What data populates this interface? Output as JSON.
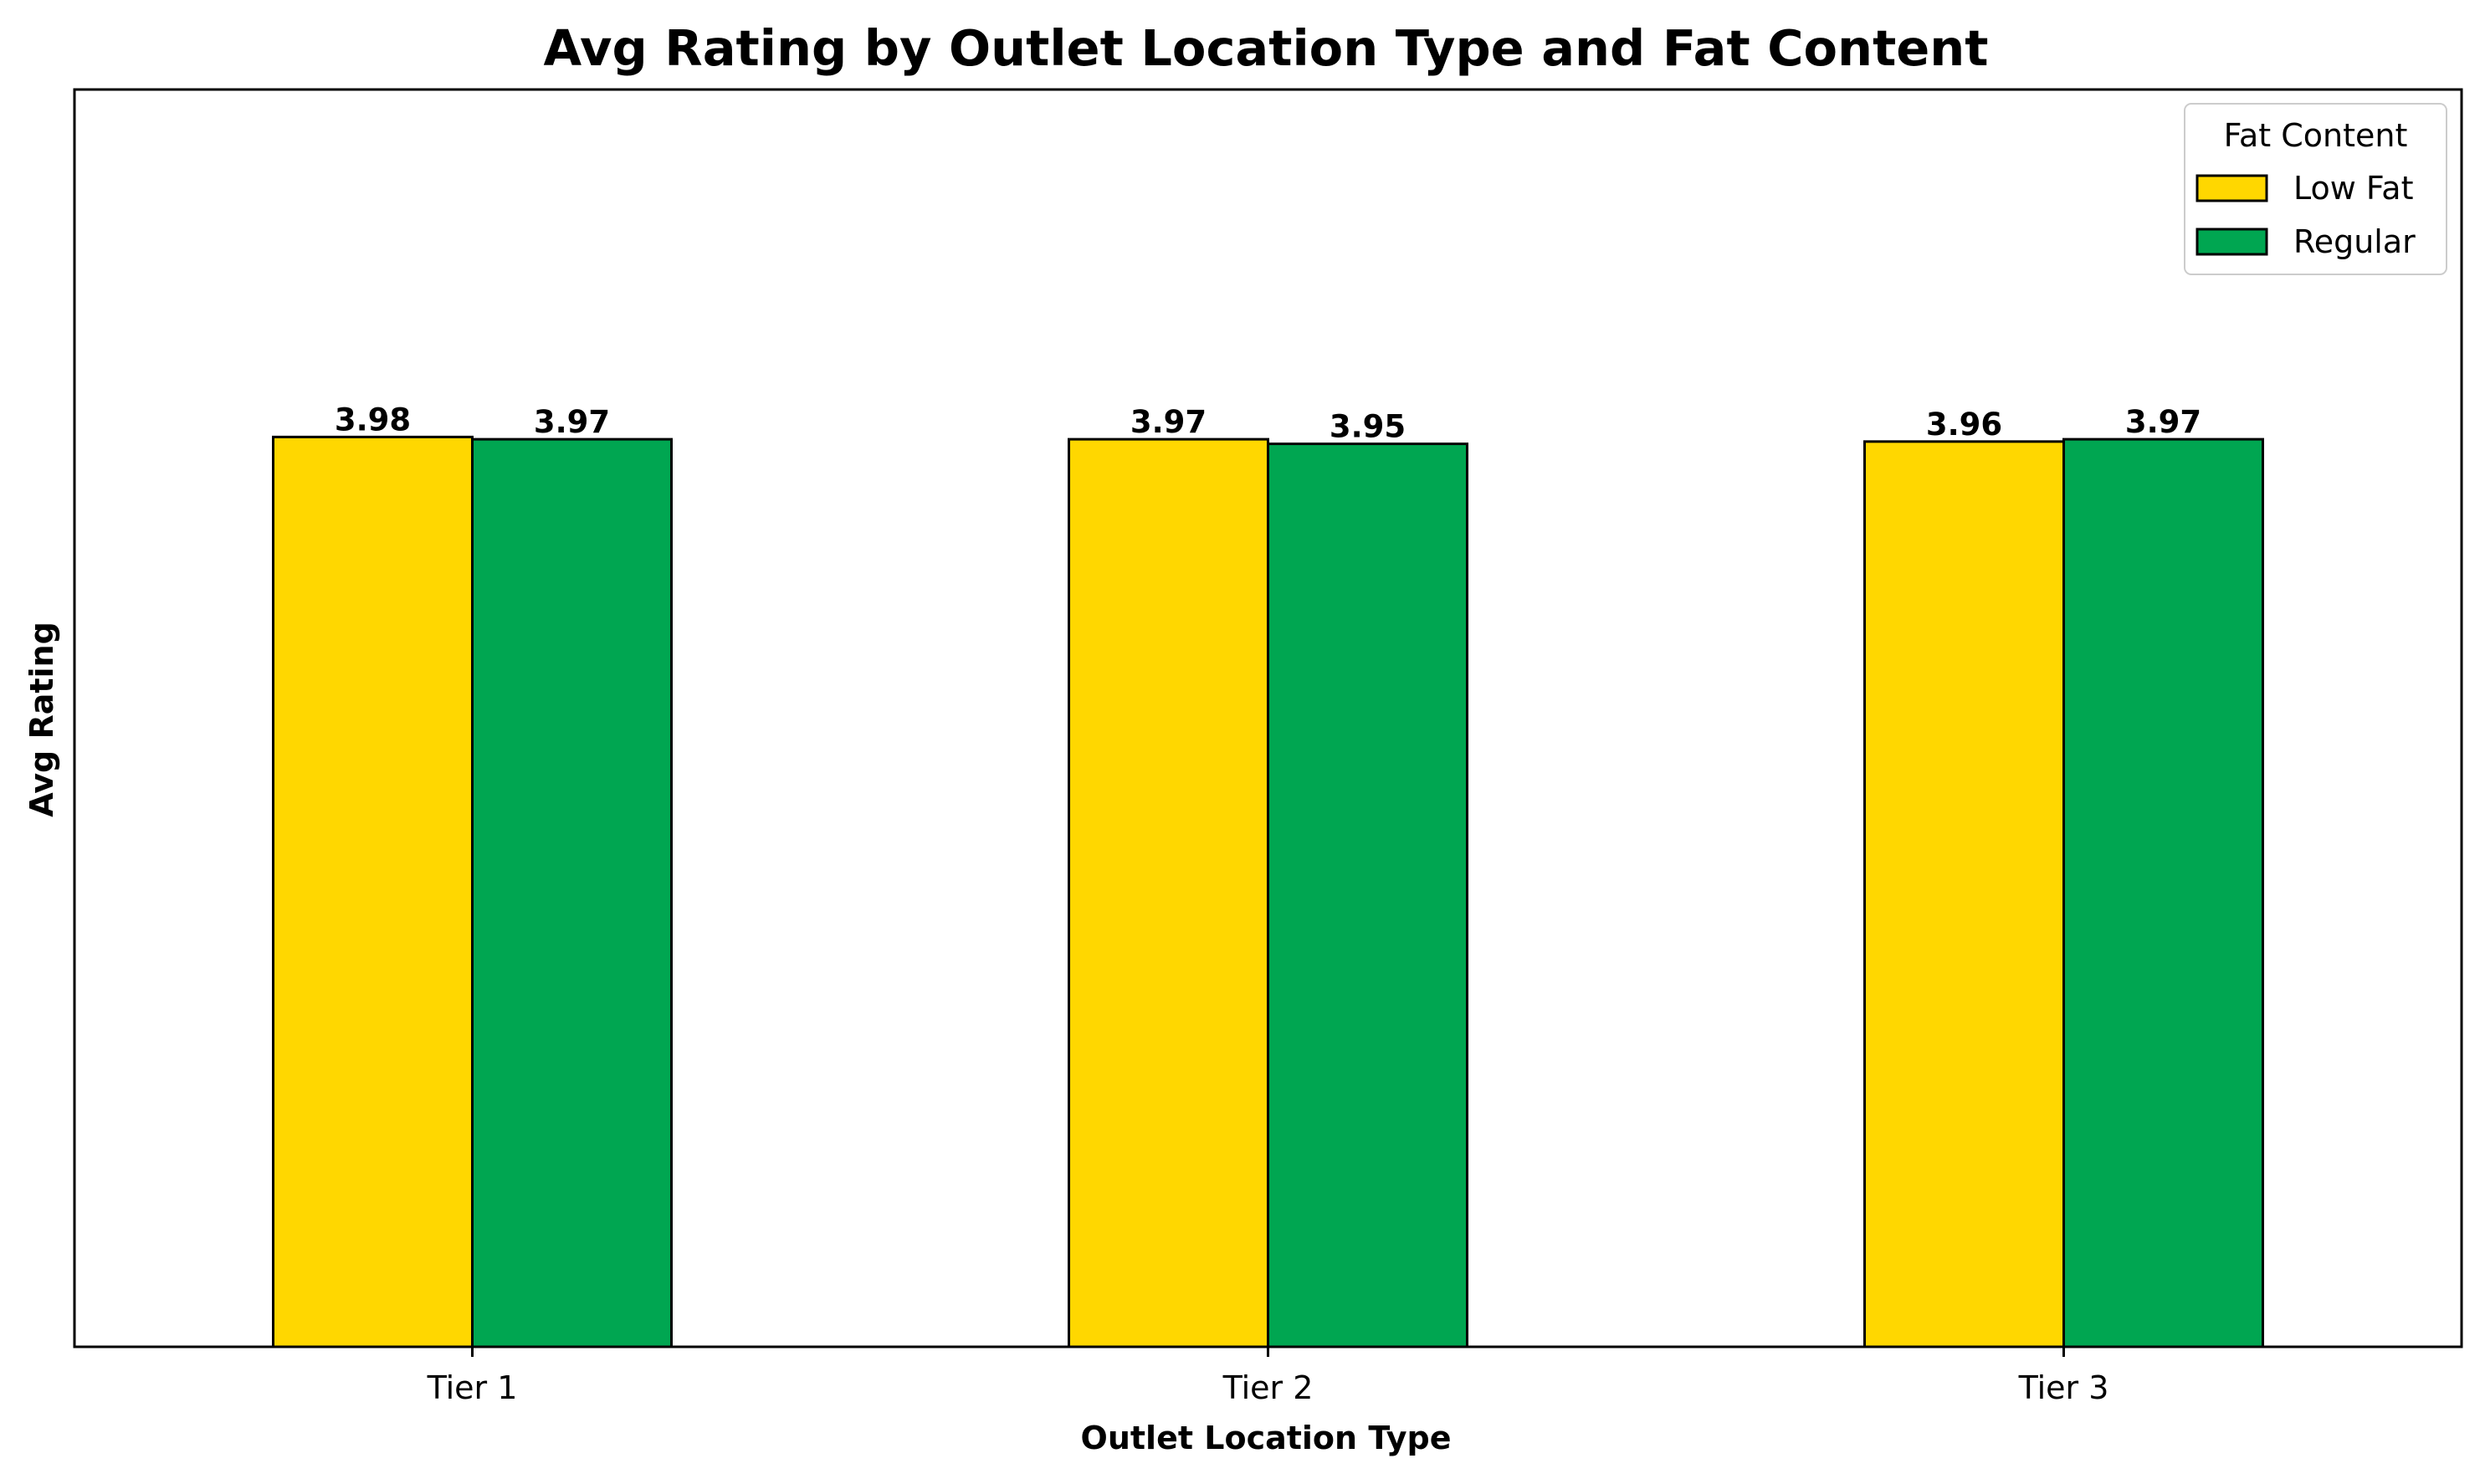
{
  "chart_data": {
    "type": "bar",
    "title": "Avg Rating by Outlet Location Type and Fat Content",
    "xlabel": "Outlet Location Type",
    "ylabel": "Avg Rating",
    "categories": [
      "Tier 1",
      "Tier 2",
      "Tier 3"
    ],
    "series": [
      {
        "name": "Low Fat",
        "color": "#FFD700",
        "values": [
          3.98,
          3.97,
          3.96
        ],
        "labels": [
          "3.98",
          "3.97",
          "3.96"
        ]
      },
      {
        "name": "Regular",
        "color": "#00A651",
        "values": [
          3.97,
          3.95,
          3.97
        ],
        "labels": [
          "3.97",
          "3.95",
          "3.97"
        ]
      }
    ],
    "ylim": [
      0,
      5.5
    ],
    "y_ticks_visible": false,
    "grid": false,
    "legend": {
      "title": "Fat Content",
      "placement": "top-right"
    },
    "bar_edge_color": "#000000"
  }
}
